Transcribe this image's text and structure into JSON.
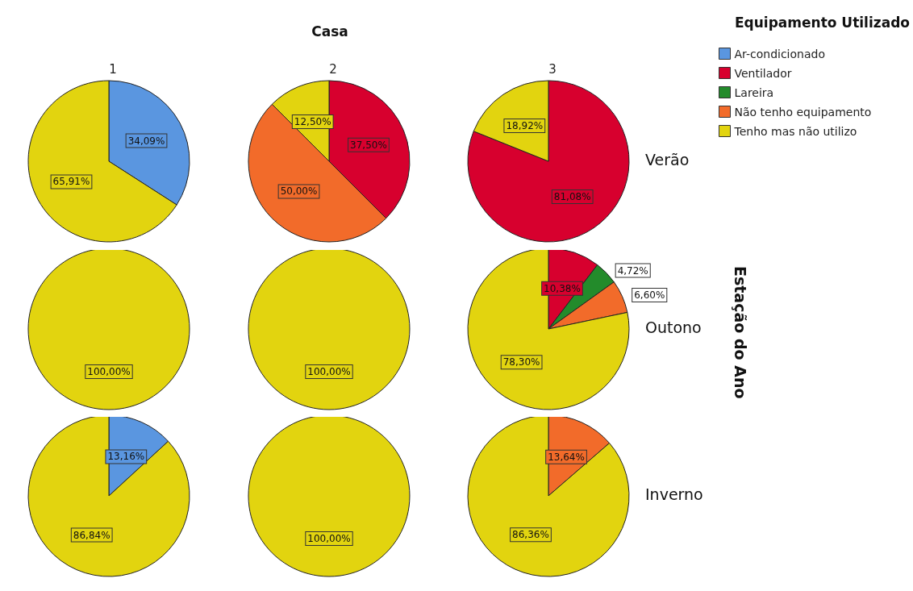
{
  "chart_data": [
    {
      "type": "pie",
      "title": "1",
      "categories": [
        null,
        null
      ],
      "values": [
        34.09,
        65.91
      ],
      "colors": [
        "#5a96e0",
        "#e2d40f"
      ],
      "value_labels": [
        "34,09%",
        "65,91%"
      ]
    },
    {
      "type": "pie",
      "title": "2",
      "annotations": [
        "Casa"
      ],
      "categories": [
        null,
        null,
        null
      ],
      "values": [
        37.5,
        50,
        12.5
      ],
      "colors": [
        "#d7002e",
        "#f26b2a",
        "#e2d40f"
      ],
      "value_labels": [
        "37,50%",
        "50,00%",
        "12,50%"
      ]
    },
    {
      "type": "pie",
      "title": "3",
      "ylabel": "Verão",
      "categories": [
        null,
        null
      ],
      "values": [
        81.08,
        18.92
      ],
      "colors": [
        "#d7002e",
        "#e2d40f"
      ],
      "value_labels": [
        "81,08%",
        "18,92%"
      ]
    },
    {
      "type": "pie",
      "categories": [
        null
      ],
      "values": [
        100
      ],
      "colors": [
        "#e2d40f"
      ],
      "value_labels": [
        "100,00%"
      ]
    },
    {
      "type": "pie",
      "categories": [
        null
      ],
      "values": [
        100
      ],
      "colors": [
        "#e2d40f"
      ],
      "value_labels": [
        "100,00%"
      ]
    },
    {
      "type": "pie",
      "ylabel": "Outono",
      "annotations": [
        "Estação do Ano"
      ],
      "categories": [
        null,
        null,
        null,
        null
      ],
      "values": [
        10.38,
        4.72,
        6.6,
        78.3
      ],
      "colors": [
        "#d7002e",
        "#238b2b",
        "#f26b2a",
        "#e2d40f"
      ],
      "value_labels": [
        "10,38%",
        "4,72%",
        "6,60%",
        "78,30%"
      ]
    },
    {
      "type": "pie",
      "categories": [
        null,
        null
      ],
      "values": [
        13.16,
        86.84
      ],
      "colors": [
        "#5a96e0",
        "#e2d40f"
      ],
      "value_labels": [
        "13,16%",
        "86,84%"
      ]
    },
    {
      "type": "pie",
      "categories": [
        null
      ],
      "values": [
        100
      ],
      "colors": [
        "#e2d40f"
      ],
      "value_labels": [
        "100,00%"
      ]
    },
    {
      "type": "pie",
      "ylabel": "Inverno",
      "categories": [
        null,
        null
      ],
      "values": [
        13.64,
        86.36
      ],
      "colors": [
        "#f26b2a",
        "#e2d40f"
      ],
      "value_labels": [
        "13,64%",
        "86,36%"
      ]
    },
    {
      "type": "other",
      "legend_title": "Equipamento Utilizado",
      "categories": [
        "Ar-condicionado",
        "Ventilador",
        "Lareira",
        "Não tenho equipamento",
        "Tenho mas não utilizo"
      ],
      "colors": [
        "#5a96e0",
        "#d7002e",
        "#238b2b",
        "#f26b2a",
        "#e2d40f"
      ]
    }
  ]
}
